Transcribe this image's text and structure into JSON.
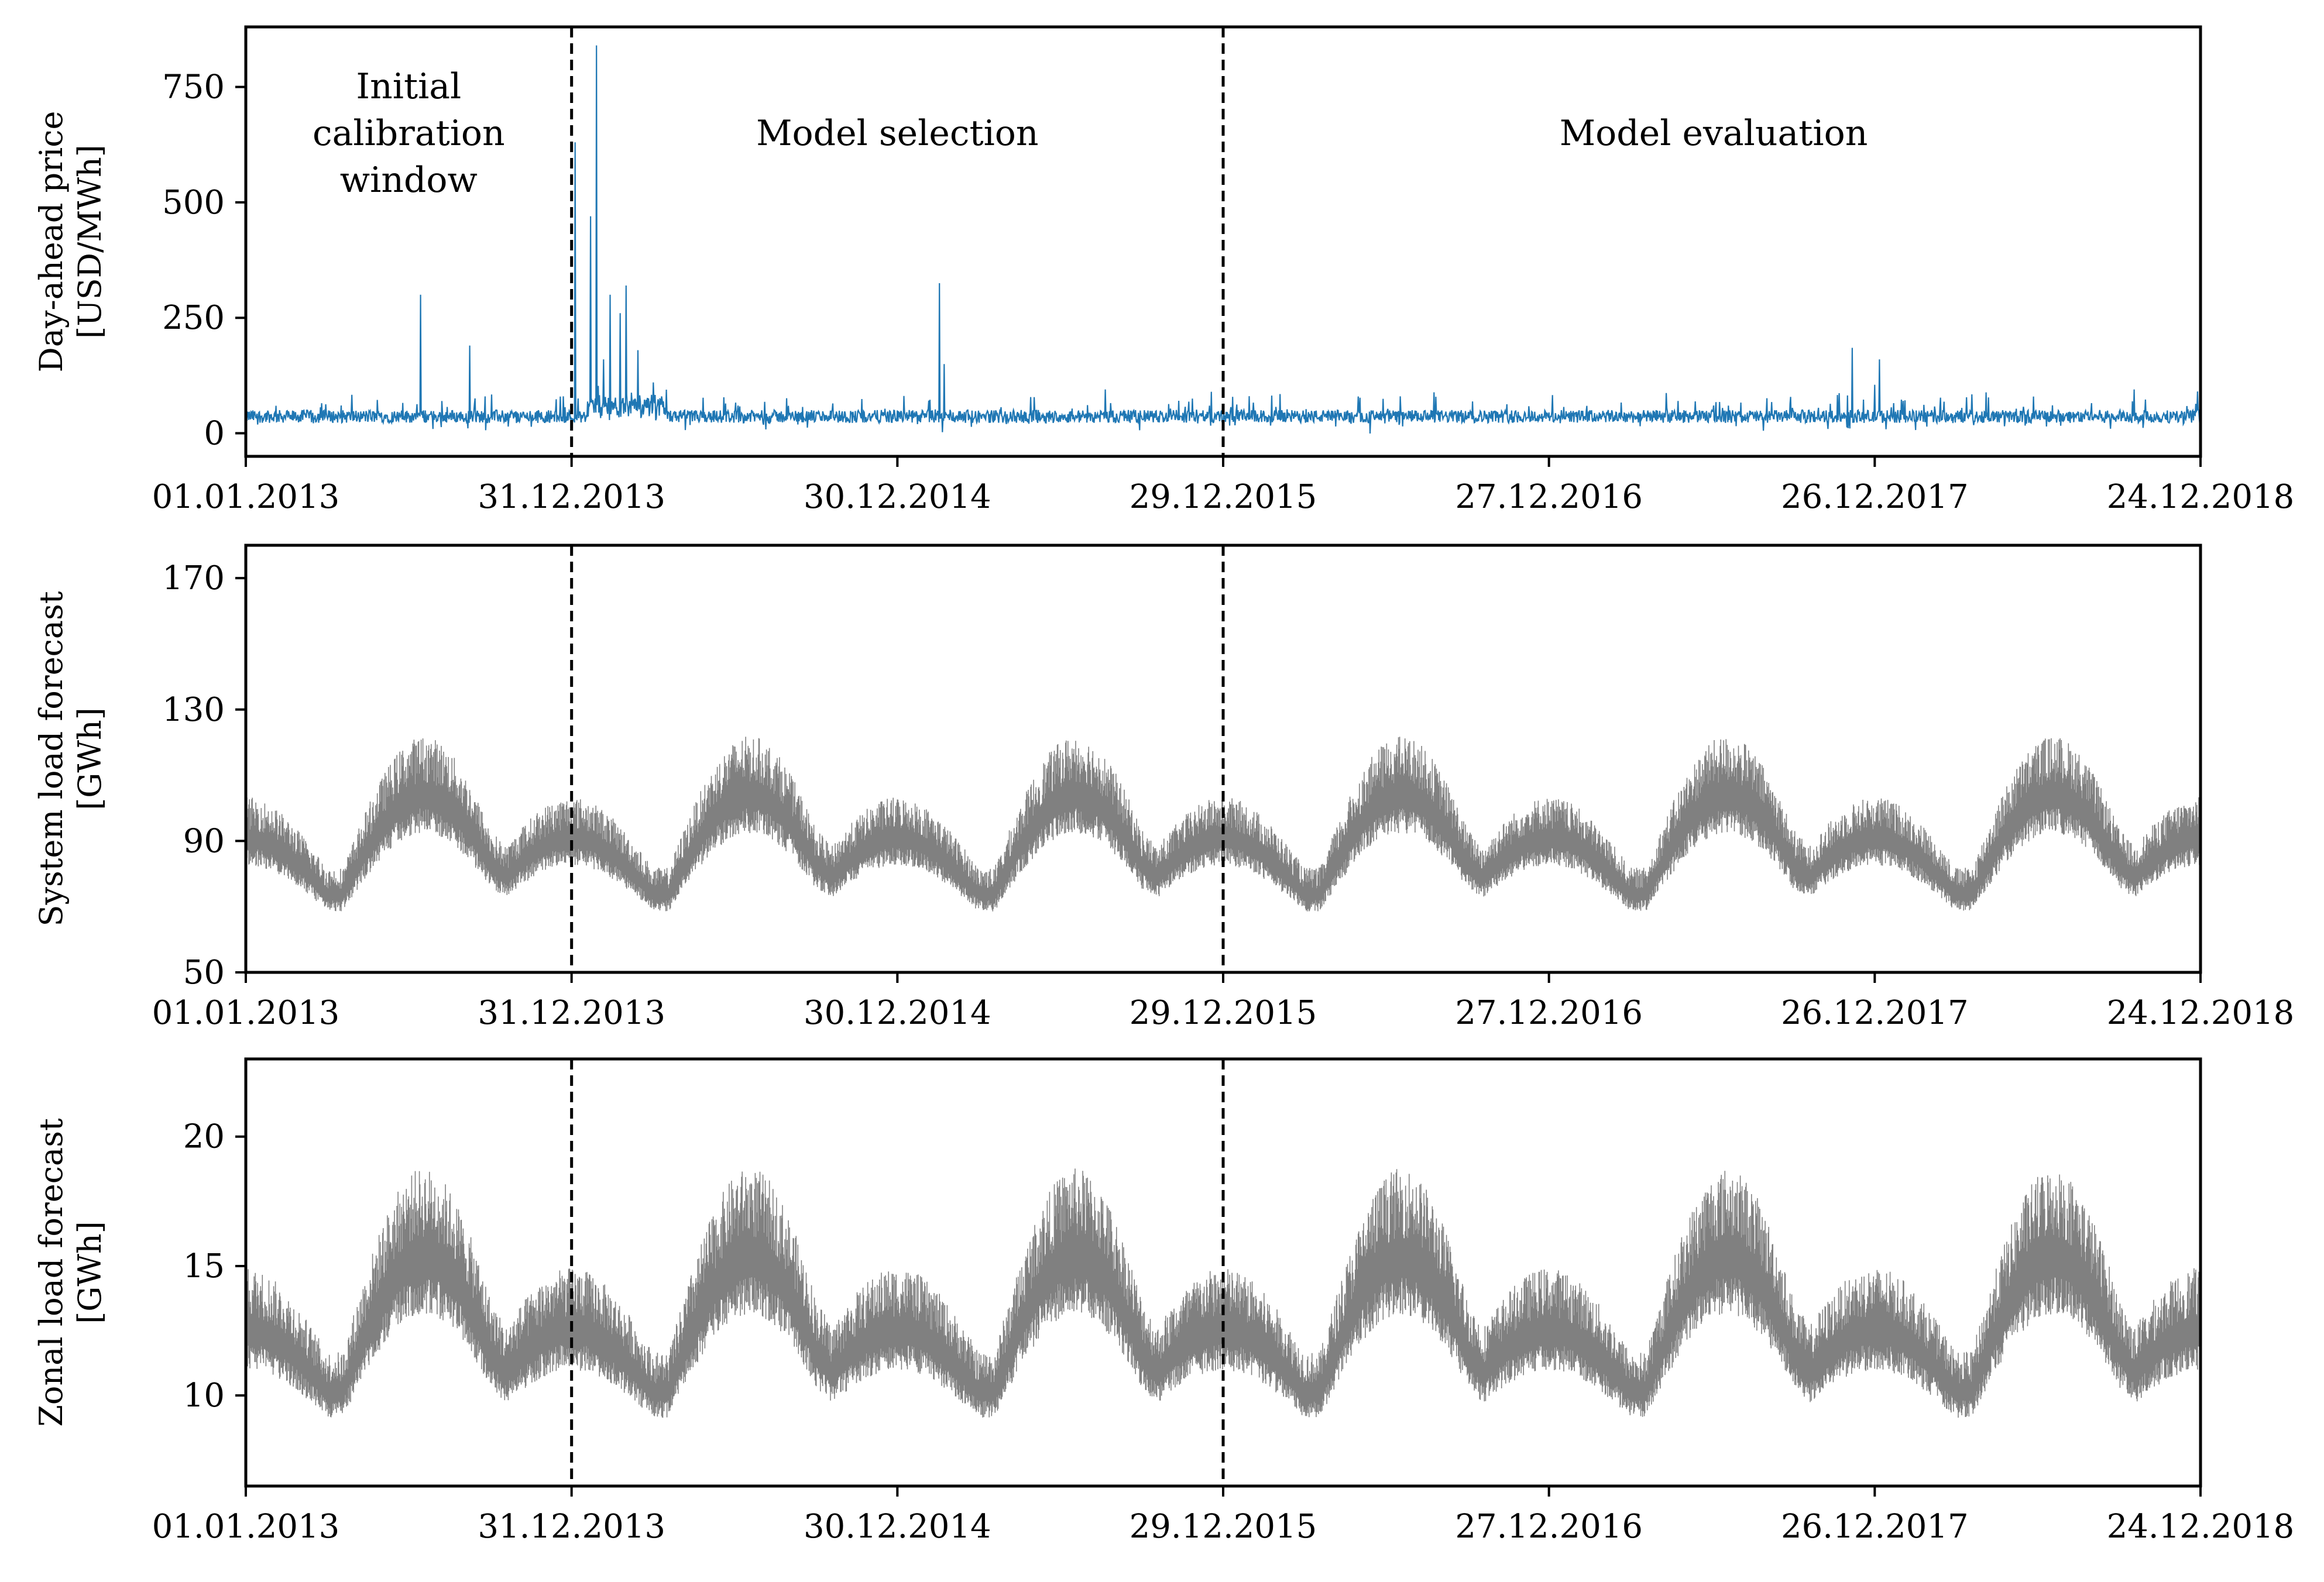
{
  "chart_data": [
    {
      "type": "line",
      "panel": "top",
      "ylabel": [
        "Day-ahead price",
        "[USD/MWh]"
      ],
      "ylim": [
        -50,
        880
      ],
      "yticks": [
        0,
        250,
        500,
        750
      ],
      "ytick_labels": [
        "0",
        "250",
        "500",
        "750"
      ],
      "xlim": [
        0,
        2184
      ],
      "xtick_days": [
        0,
        364,
        728,
        1092,
        1456,
        1820,
        2184
      ],
      "xtick_labels": [
        "01.01.2013",
        "31.12.2013",
        "30.12.2014",
        "29.12.2015",
        "27.12.2016",
        "26.12.2017",
        "24.12.2018"
      ],
      "line_color": "#1f77b4",
      "baseline": 35,
      "noise": 14,
      "spikes": [
        {
          "day": 195,
          "value": 300
        },
        {
          "day": 250,
          "value": 190
        },
        {
          "day": 355,
          "value": 80
        },
        {
          "day": 368,
          "value": 630
        },
        {
          "day": 385,
          "value": 470
        },
        {
          "day": 392,
          "value": 840
        },
        {
          "day": 400,
          "value": 160
        },
        {
          "day": 407,
          "value": 300
        },
        {
          "day": 418,
          "value": 260
        },
        {
          "day": 425,
          "value": 320
        },
        {
          "day": 438,
          "value": 180
        },
        {
          "day": 455,
          "value": 110
        },
        {
          "day": 775,
          "value": 325
        },
        {
          "day": 780,
          "value": 150
        },
        {
          "day": 960,
          "value": 95
        },
        {
          "day": 1290,
          "value": 80
        },
        {
          "day": 1600,
          "value": 70
        },
        {
          "day": 1795,
          "value": 185
        },
        {
          "day": 1820,
          "value": 105
        },
        {
          "day": 1825,
          "value": 160
        },
        {
          "day": 2110,
          "value": 95
        }
      ],
      "dividers_days": [
        364,
        1092
      ],
      "annotations": [
        {
          "lines": [
            "Initial",
            "calibration",
            "window"
          ],
          "day": 182
        },
        {
          "lines": [
            "Model selection"
          ],
          "day": 728
        },
        {
          "lines": [
            "Model evaluation"
          ],
          "day": 1640
        }
      ]
    },
    {
      "type": "line",
      "panel": "middle",
      "ylabel": [
        "System load forecast",
        "[GWh]"
      ],
      "ylim": [
        50,
        180
      ],
      "yticks": [
        50,
        90,
        130,
        170
      ],
      "ytick_labels": [
        "50",
        "90",
        "130",
        "170"
      ],
      "xlim": [
        0,
        2184
      ],
      "xtick_days": [
        0,
        364,
        728,
        1092,
        1456,
        1820,
        2184
      ],
      "xtick_labels": [
        "01.01.2013",
        "31.12.2013",
        "30.12.2014",
        "29.12.2015",
        "27.12.2016",
        "26.12.2017",
        "24.12.2018"
      ],
      "line_color": "#808080",
      "base_low": 72,
      "summer_amp": 28,
      "winter_amp": 16,
      "spread": 22,
      "dividers_days": [
        364,
        1092
      ]
    },
    {
      "type": "line",
      "panel": "bottom",
      "ylabel": [
        "Zonal load forecast",
        "[GWh]"
      ],
      "ylim": [
        6.5,
        23
      ],
      "yticks": [
        10,
        15,
        20
      ],
      "ytick_labels": [
        "10",
        "15",
        "20"
      ],
      "xlim": [
        0,
        2184
      ],
      "xtick_days": [
        0,
        364,
        728,
        1092,
        1456,
        1820,
        2184
      ],
      "xtick_labels": [
        "01.01.2013",
        "31.12.2013",
        "30.12.2014",
        "29.12.2015",
        "27.12.2016",
        "26.12.2017",
        "24.12.2018"
      ],
      "line_color": "#808080",
      "base_low": 9.8,
      "summer_amp": 4.8,
      "winter_amp": 2.2,
      "spread": 4.2,
      "dividers_days": [
        364,
        1092
      ]
    }
  ]
}
